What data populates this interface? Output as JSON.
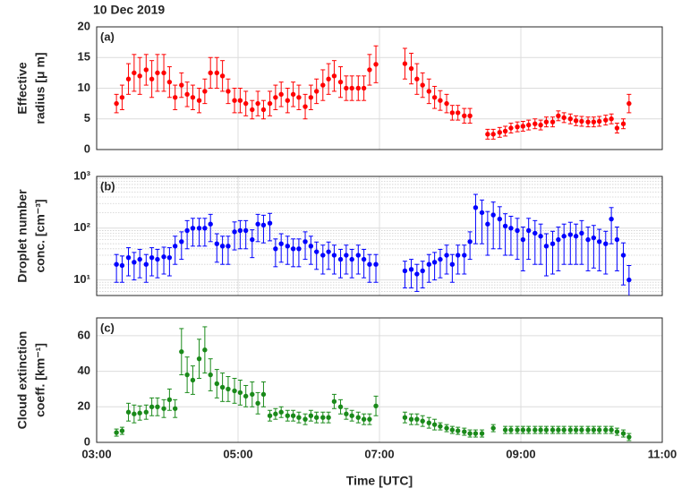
{
  "chart_data": {
    "type": "errorbar",
    "title": "10 Dec 2019",
    "xlabel": "Time [UTC]",
    "xlim": [
      3,
      11
    ],
    "xticks": [
      {
        "value": 3,
        "label": "03:00"
      },
      {
        "value": 5,
        "label": "05:00"
      },
      {
        "value": 7,
        "label": "07:00"
      },
      {
        "value": 9,
        "label": "09:00"
      },
      {
        "value": 11,
        "label": "11:00"
      }
    ],
    "grid": true,
    "x": [
      3.28,
      3.36,
      3.45,
      3.53,
      3.61,
      3.7,
      3.78,
      3.86,
      3.95,
      4.03,
      4.11,
      4.2,
      4.28,
      4.36,
      4.45,
      4.53,
      4.61,
      4.7,
      4.78,
      4.86,
      4.95,
      5.03,
      5.11,
      5.2,
      5.28,
      5.36,
      5.45,
      5.53,
      5.61,
      5.7,
      5.78,
      5.86,
      5.95,
      6.03,
      6.11,
      6.2,
      6.28,
      6.36,
      6.45,
      6.53,
      6.61,
      6.7,
      6.78,
      6.86,
      6.95,
      7.03,
      7.11,
      7.2,
      7.28,
      7.36,
      7.45,
      7.53,
      7.61,
      7.7,
      7.78,
      7.86,
      7.95,
      8.03,
      8.11,
      8.2,
      8.28,
      8.36,
      8.45,
      8.53,
      8.61,
      8.7,
      8.78,
      8.86,
      8.95,
      9.03,
      9.11,
      9.2,
      9.28,
      9.36,
      9.45,
      9.53,
      9.61,
      9.7,
      9.78,
      9.86,
      9.95,
      10.03,
      10.11,
      10.2,
      10.28,
      10.36,
      10.45,
      10.53
    ],
    "panels": [
      {
        "label": "(a)",
        "ylabel": [
          "Effective",
          "radius [μ m]"
        ],
        "color": "#ff0000",
        "log": false,
        "ylim": [
          0,
          20
        ],
        "yticks": [
          0,
          5,
          10,
          15,
          20
        ],
        "values": [
          7.5,
          8.5,
          11.5,
          12.5,
          12,
          13,
          11.5,
          12.5,
          12.5,
          11,
          8.5,
          10.5,
          9,
          8.5,
          8,
          9.5,
          12.5,
          12.5,
          12,
          9.5,
          8,
          8,
          7.5,
          6.5,
          7.5,
          6.5,
          7.5,
          8.5,
          9,
          8,
          9,
          8.5,
          7,
          8.5,
          9.5,
          10.5,
          11.5,
          12,
          11,
          10,
          10,
          10,
          10,
          13,
          13.9,
          null,
          null,
          null,
          null,
          14,
          13.2,
          11.5,
          10.5,
          9.5,
          8.5,
          8,
          7.5,
          6,
          6,
          5.5,
          5.5,
          null,
          null,
          2.5,
          2.5,
          2.8,
          3,
          3.5,
          3.7,
          3.8,
          4,
          4.2,
          4,
          4.5,
          4.5,
          5.5,
          5.2,
          5,
          4.7,
          4.6,
          4.5,
          4.5,
          4.6,
          4.8,
          5,
          3.5,
          4.2,
          7.5
        ],
        "errors": [
          1.5,
          2,
          2.5,
          3,
          3,
          2.5,
          3,
          3,
          3,
          2.5,
          2,
          2,
          2,
          2,
          2,
          2,
          2.5,
          2.5,
          2.5,
          2,
          2,
          2,
          2,
          1.5,
          2,
          1.5,
          2,
          2,
          2,
          2,
          2,
          2,
          2,
          2,
          2,
          2.5,
          2.5,
          2.5,
          2.5,
          2,
          2,
          2,
          2,
          2.5,
          3,
          null,
          null,
          null,
          null,
          2.5,
          2.5,
          2.5,
          2,
          2,
          1.8,
          1.6,
          1.5,
          1.2,
          1.2,
          1.2,
          1.2,
          null,
          null,
          0.8,
          0.8,
          0.8,
          0.8,
          0.8,
          0.8,
          0.8,
          0.8,
          0.8,
          0.8,
          0.8,
          0.8,
          0.8,
          0.8,
          0.8,
          0.8,
          0.8,
          0.8,
          0.8,
          0.8,
          0.8,
          0.8,
          0.8,
          0.8,
          1.5
        ]
      },
      {
        "label": "(b)",
        "ylabel": [
          "Droplet number",
          "conc. [cm⁻³]"
        ],
        "color": "#0000ff",
        "log": true,
        "ylim": [
          5,
          1000
        ],
        "yticks": [
          {
            "value": 10,
            "label": "10¹"
          },
          {
            "value": 100,
            "label": "10²"
          },
          {
            "value": 1000,
            "label": "10³"
          }
        ],
        "values": [
          20,
          19,
          27,
          22,
          25,
          20,
          27,
          25,
          28,
          27,
          45,
          55,
          90,
          100,
          100,
          100,
          120,
          50,
          45,
          45,
          85,
          90,
          90,
          60,
          120,
          115,
          125,
          40,
          50,
          45,
          40,
          40,
          55,
          45,
          35,
          30,
          35,
          30,
          25,
          30,
          25,
          30,
          25,
          20,
          20,
          null,
          null,
          null,
          null,
          15,
          16,
          13,
          15,
          20,
          22,
          25,
          30,
          20,
          30,
          30,
          55,
          250,
          200,
          120,
          180,
          150,
          110,
          100,
          90,
          60,
          90,
          80,
          70,
          45,
          50,
          60,
          70,
          75,
          70,
          80,
          60,
          65,
          55,
          50,
          150,
          60,
          30,
          10
        ],
        "errors": [
          11,
          10,
          15,
          12,
          14,
          11,
          15,
          14,
          15,
          15,
          25,
          30,
          50,
          55,
          55,
          55,
          65,
          28,
          25,
          25,
          47,
          50,
          50,
          33,
          65,
          63,
          68,
          22,
          28,
          25,
          22,
          22,
          30,
          25,
          19,
          17,
          19,
          17,
          14,
          17,
          14,
          17,
          14,
          11,
          11,
          null,
          null,
          null,
          null,
          8,
          9,
          7,
          8,
          11,
          12,
          14,
          17,
          11,
          17,
          17,
          30,
          200,
          150,
          90,
          140,
          110,
          80,
          70,
          65,
          45,
          65,
          60,
          50,
          33,
          37,
          45,
          50,
          55,
          50,
          60,
          45,
          48,
          40,
          37,
          100,
          45,
          22,
          9
        ]
      },
      {
        "label": "(c)",
        "ylabel": [
          "Cloud extinction",
          "coeff. [km⁻¹]"
        ],
        "color": "#1a8a1a",
        "log": false,
        "ylim": [
          0,
          70
        ],
        "yticks": [
          0,
          20,
          40,
          60
        ],
        "values": [
          5.5,
          6.5,
          17,
          16,
          16.5,
          17,
          20,
          20,
          19,
          24,
          19,
          51,
          38,
          35,
          47,
          52,
          38,
          33,
          31,
          30,
          29,
          28,
          26,
          27,
          22,
          27,
          15,
          16,
          17,
          15,
          15,
          14,
          13,
          15,
          14,
          14,
          14,
          23,
          20,
          16,
          15,
          14,
          13,
          13,
          20.5,
          null,
          null,
          null,
          null,
          14,
          13,
          13,
          12,
          11,
          10,
          9,
          8,
          7,
          6.5,
          6,
          5,
          5,
          5,
          null,
          8,
          null,
          7,
          7,
          7,
          7,
          7,
          7,
          7,
          7,
          7,
          7,
          7,
          7,
          7,
          7,
          7,
          7,
          7,
          7,
          7,
          6,
          5,
          3
        ],
        "errors": [
          2,
          2,
          5,
          5,
          4,
          4,
          5,
          5,
          5,
          6,
          5,
          13,
          10,
          8,
          11,
          13,
          9,
          8,
          8,
          7,
          7,
          7,
          6,
          7,
          6,
          7,
          3,
          3,
          3,
          3,
          3,
          3,
          3,
          3,
          3,
          3,
          3,
          4,
          4,
          3,
          3,
          3,
          3,
          3,
          5.5,
          null,
          null,
          null,
          null,
          3,
          3,
          3,
          3,
          3,
          3,
          2,
          2,
          2,
          2,
          2,
          2,
          2,
          2,
          null,
          2,
          null,
          2,
          2,
          2,
          2,
          2,
          2,
          2,
          2,
          2,
          2,
          2,
          2,
          2,
          2,
          2,
          2,
          2,
          2,
          2,
          2,
          2,
          2
        ]
      }
    ]
  }
}
